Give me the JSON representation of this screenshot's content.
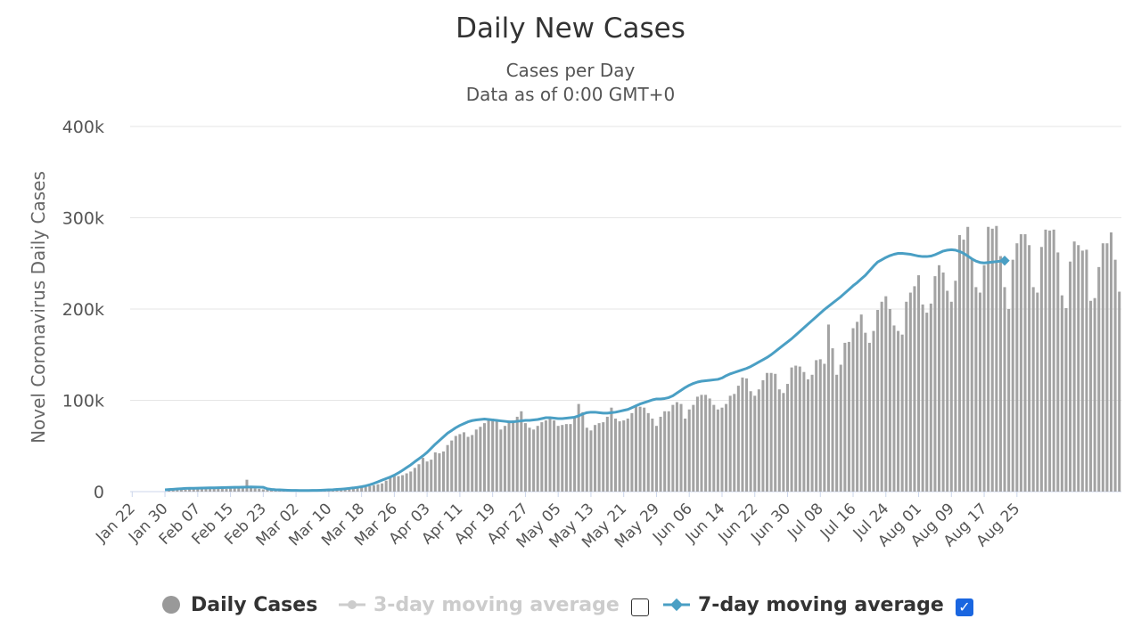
{
  "header": {
    "title": "Daily New Cases",
    "subtitle1": "Cases per Day",
    "subtitle2": "Data as of 0:00 GMT+0"
  },
  "legend": {
    "daily_label": "Daily Cases",
    "ma3_label": "3-day moving average",
    "ma7_label": "7-day moving average",
    "ma3_checked": false,
    "ma7_checked": true
  },
  "colors": {
    "bars": "#a3a3a3",
    "line7": "#4a9fc4",
    "grid": "#e6e6e6",
    "disabled": "#cccccc",
    "checkbox": "#1a66e0"
  },
  "chart_data": {
    "type": "bar",
    "ylabel": "Novel Coronavirus Daily Cases",
    "ylim": [
      0,
      400000
    ],
    "ytick_labels": [
      "0",
      "100k",
      "200k",
      "300k",
      "400k"
    ],
    "ytick_values": [
      0,
      100000,
      200000,
      300000,
      400000
    ],
    "xtick_labels": [
      "Jan 22",
      "Jan 30",
      "Feb 07",
      "Feb 15",
      "Feb 23",
      "Mar 02",
      "Mar 10",
      "Mar 18",
      "Mar 26",
      "Apr 03",
      "Apr 11",
      "Apr 19",
      "Apr 27",
      "May 05",
      "May 13",
      "May 21",
      "May 29",
      "Jun 06",
      "Jun 14",
      "Jun 22",
      "Jun 30",
      "Jul 08",
      "Jul 16",
      "Jul 24",
      "Aug 01",
      "Aug 09",
      "Aug 17",
      "Aug 25"
    ],
    "grid": true,
    "legend_position": "bottom",
    "start_date": "Jan 22",
    "series": [
      {
        "name": "Daily Cases",
        "type": "bar",
        "values": [
          0,
          0,
          0,
          0,
          0,
          0,
          0,
          0,
          0,
          2000,
          2000,
          2000,
          2000,
          2000,
          2500,
          3000,
          3000,
          3500,
          3500,
          3500,
          4000,
          3500,
          3500,
          3000,
          4000,
          4000,
          4500,
          4500,
          13000,
          5000,
          3500,
          3000,
          2500,
          2000,
          1800,
          1500,
          1200,
          1000,
          1000,
          1000,
          1000,
          1000,
          1000,
          1000,
          1000,
          1200,
          1200,
          1500,
          1500,
          1800,
          2000,
          2000,
          2500,
          3000,
          3500,
          4000,
          4500,
          5000,
          6000,
          7000,
          8000,
          9000,
          12000,
          15000,
          17000,
          17000,
          18000,
          20000,
          22000,
          26000,
          30000,
          37000,
          33000,
          35000,
          43000,
          42000,
          44000,
          51000,
          56000,
          61000,
          63000,
          65000,
          60000,
          62000,
          68000,
          71000,
          75000,
          78000,
          80000,
          77000,
          68000,
          72000,
          76000,
          78000,
          82000,
          88000,
          75000,
          70000,
          68000,
          72000,
          76000,
          78000,
          80000,
          78000,
          72000,
          73000,
          74000,
          74000,
          82000,
          96000,
          87000,
          70000,
          67000,
          73000,
          75000,
          76000,
          82000,
          92000,
          80000,
          77000,
          78000,
          80000,
          86000,
          93000,
          93000,
          92000,
          86000,
          80000,
          72000,
          82000,
          88000,
          88000,
          95000,
          98000,
          96000,
          80000,
          90000,
          95000,
          104000,
          106000,
          106000,
          102000,
          95000,
          90000,
          92000,
          96000,
          105000,
          107000,
          116000,
          125000,
          124000,
          110000,
          105000,
          112000,
          122000,
          130000,
          130000,
          129000,
          112000,
          108000,
          118000,
          136000,
          138000,
          137000,
          131000,
          123000,
          128000,
          144000,
          145000,
          140000,
          183000,
          157000,
          128000,
          139000,
          163000,
          164000,
          179000,
          186000,
          194000,
          174000,
          163000,
          176000,
          199000,
          208000,
          214000,
          200000,
          182000,
          176000,
          172000,
          208000,
          218000,
          225000,
          237000,
          205000,
          196000,
          206000,
          236000,
          248000,
          240000,
          220000,
          208000,
          231000,
          281000,
          276000,
          290000,
          255000,
          224000,
          218000,
          248000,
          290000,
          288000,
          291000,
          258000,
          224000,
          200000,
          254000,
          272000,
          282000,
          282000,
          270000,
          224000,
          218000,
          268000,
          287000,
          286000,
          287000,
          262000,
          215000,
          201000,
          252000,
          274000,
          270000,
          264000,
          265000,
          209000,
          212000,
          246000,
          272000,
          272000,
          284000,
          254000,
          219000
        ]
      },
      {
        "name": "7-day moving average",
        "type": "line",
        "start_index": 8,
        "values": [
          2000,
          2300,
          2600,
          2900,
          3200,
          3500,
          3600,
          3700,
          3800,
          3900,
          4000,
          4100,
          4200,
          4300,
          4400,
          4500,
          4600,
          4700,
          4800,
          4900,
          5000,
          5100,
          5000,
          4900,
          4800,
          3000,
          2400,
          2100,
          1900,
          1700,
          1500,
          1400,
          1300,
          1200,
          1200,
          1200,
          1300,
          1400,
          1500,
          1700,
          1900,
          2100,
          2400,
          2700,
          3100,
          3600,
          4100,
          4700,
          5400,
          6300,
          7500,
          9000,
          10700,
          12600,
          14300,
          16000,
          18000,
          20500,
          23300,
          26300,
          29300,
          32800,
          36000,
          39300,
          43000,
          47500,
          52000,
          56000,
          60000,
          64000,
          67000,
          70000,
          72500,
          74500,
          76500,
          77800,
          78500,
          79000,
          79500,
          79000,
          78500,
          78000,
          77500,
          77000,
          76500,
          76500,
          77000,
          77500,
          78000,
          78000,
          78500,
          79000,
          80000,
          81000,
          81000,
          80500,
          80000,
          80000,
          80500,
          81000,
          81500,
          83000,
          85000,
          86500,
          87000,
          87000,
          86500,
          86000,
          86000,
          86500,
          87000,
          88000,
          89000,
          90000,
          92000,
          94000,
          96000,
          97500,
          99000,
          100500,
          101500,
          101500,
          102000,
          103000,
          105000,
          108000,
          111000,
          114000,
          116500,
          118500,
          120000,
          121000,
          121500,
          122000,
          122500,
          123000,
          124500,
          127000,
          129000,
          130500,
          132000,
          133500,
          135000,
          137000,
          139500,
          142000,
          144500,
          147000,
          150000,
          153500,
          157000,
          160500,
          164000,
          167500,
          171500,
          175500,
          179500,
          183500,
          187500,
          191500,
          195500,
          199500,
          203000,
          206500,
          210000,
          213500,
          217500,
          221500,
          225500,
          229000,
          233000,
          237000,
          242000,
          247000,
          251500,
          254000,
          256500,
          258500,
          260000,
          261000,
          261000,
          260500,
          260000,
          259000,
          258000,
          257500,
          257500,
          258000,
          259500,
          261500,
          263500,
          264500,
          265000,
          264500,
          263000,
          261000,
          258000,
          255000,
          252500,
          251000,
          250500,
          251000,
          251500,
          252000,
          252500,
          253000
        ]
      }
    ]
  }
}
